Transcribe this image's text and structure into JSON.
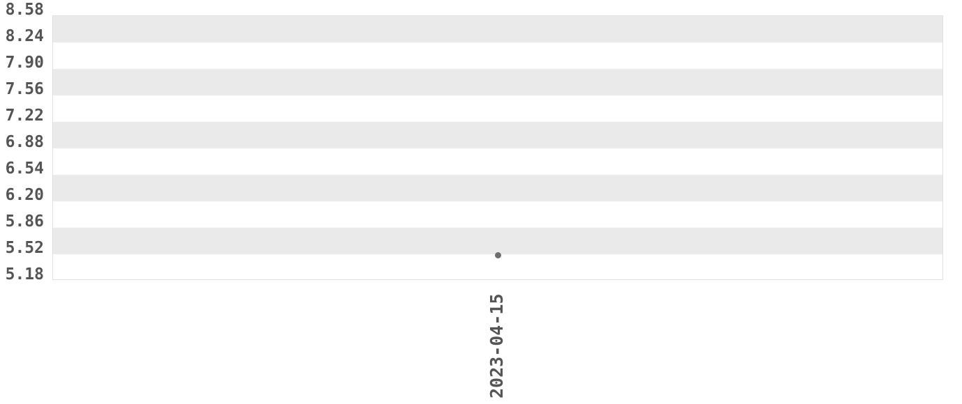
{
  "chart_data": {
    "type": "scatter",
    "x_tick_labels": [
      "2023-04-15"
    ],
    "y_tick_labels": [
      "8.58",
      "8.24",
      "7.90",
      "7.56",
      "7.22",
      "6.88",
      "6.54",
      "6.20",
      "5.86",
      "5.52",
      "5.18"
    ],
    "ylim": [
      5.18,
      8.58
    ],
    "y_tick_step": 0.34,
    "points": [
      {
        "x": "2023-04-15",
        "y": 5.49
      }
    ],
    "series": [
      {
        "name": "",
        "values": [
          5.49
        ]
      }
    ],
    "grid": "alternating-horizontal-bands",
    "legend_position": "none",
    "colors": {
      "band": "#eaeaea",
      "band_alt": "#ffffff",
      "plot_border": "#e0e0e0",
      "tick_text": "#555555",
      "point": "#6e6e6e",
      "background": "#ffffff"
    }
  }
}
